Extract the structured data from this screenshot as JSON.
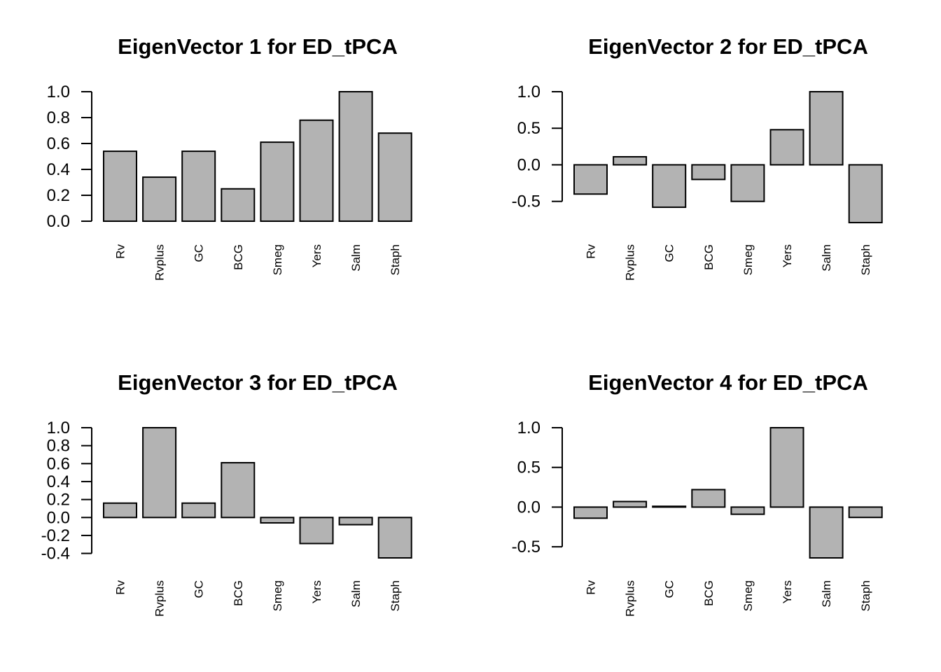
{
  "chart_data": [
    {
      "type": "bar",
      "title": "EigenVector 1 for ED_tPCA",
      "categories": [
        "Rv",
        "Rvplus",
        "GC",
        "BCG",
        "Smeg",
        "Yers",
        "Salm",
        "Staph"
      ],
      "values": [
        0.54,
        0.34,
        0.54,
        0.25,
        0.61,
        0.78,
        1.0,
        0.68
      ],
      "yticks": [
        0.0,
        0.2,
        0.4,
        0.6,
        0.8,
        1.0
      ],
      "ytick_labels": [
        "0.0",
        "0.2",
        "0.4",
        "0.6",
        "0.8",
        "1.0"
      ],
      "ylim": [
        0.0,
        1.0
      ],
      "bar_color": "#b3b3b3"
    },
    {
      "type": "bar",
      "title": "EigenVector 2 for ED_tPCA",
      "categories": [
        "Rv",
        "Rvplus",
        "GC",
        "BCG",
        "Smeg",
        "Yers",
        "Salm",
        "Staph"
      ],
      "values": [
        -0.4,
        0.11,
        -0.58,
        -0.2,
        -0.5,
        0.48,
        1.0,
        -0.79
      ],
      "yticks": [
        -0.5,
        0.0,
        0.5,
        1.0
      ],
      "ytick_labels": [
        "-0.5",
        "0.0",
        "0.5",
        "1.0"
      ],
      "ylim": [
        -0.79,
        1.0
      ],
      "bar_color": "#b3b3b3"
    },
    {
      "type": "bar",
      "title": "EigenVector 3 for ED_tPCA",
      "categories": [
        "Rv",
        "Rvplus",
        "GC",
        "BCG",
        "Smeg",
        "Yers",
        "Salm",
        "Staph"
      ],
      "values": [
        0.16,
        1.0,
        0.16,
        0.61,
        -0.06,
        -0.29,
        -0.08,
        -0.45
      ],
      "yticks": [
        -0.4,
        -0.2,
        0.0,
        0.2,
        0.4,
        0.6,
        0.8,
        1.0
      ],
      "ytick_labels": [
        "-0.4",
        "-0.2",
        "0.0",
        "0.2",
        "0.4",
        "0.6",
        "0.8",
        "1.0"
      ],
      "ylim": [
        -0.45,
        1.0
      ],
      "bar_color": "#b3b3b3"
    },
    {
      "type": "bar",
      "title": "EigenVector 4 for ED_tPCA",
      "categories": [
        "Rv",
        "Rvplus",
        "GC",
        "BCG",
        "Smeg",
        "Yers",
        "Salm",
        "Staph"
      ],
      "values": [
        -0.14,
        0.07,
        0.01,
        0.22,
        -0.09,
        1.0,
        -0.64,
        -0.13
      ],
      "yticks": [
        -0.5,
        0.0,
        0.5,
        1.0
      ],
      "ytick_labels": [
        "-0.5",
        "0.0",
        "0.5",
        "1.0"
      ],
      "ylim": [
        -0.64,
        1.0
      ],
      "bar_color": "#b3b3b3"
    }
  ]
}
